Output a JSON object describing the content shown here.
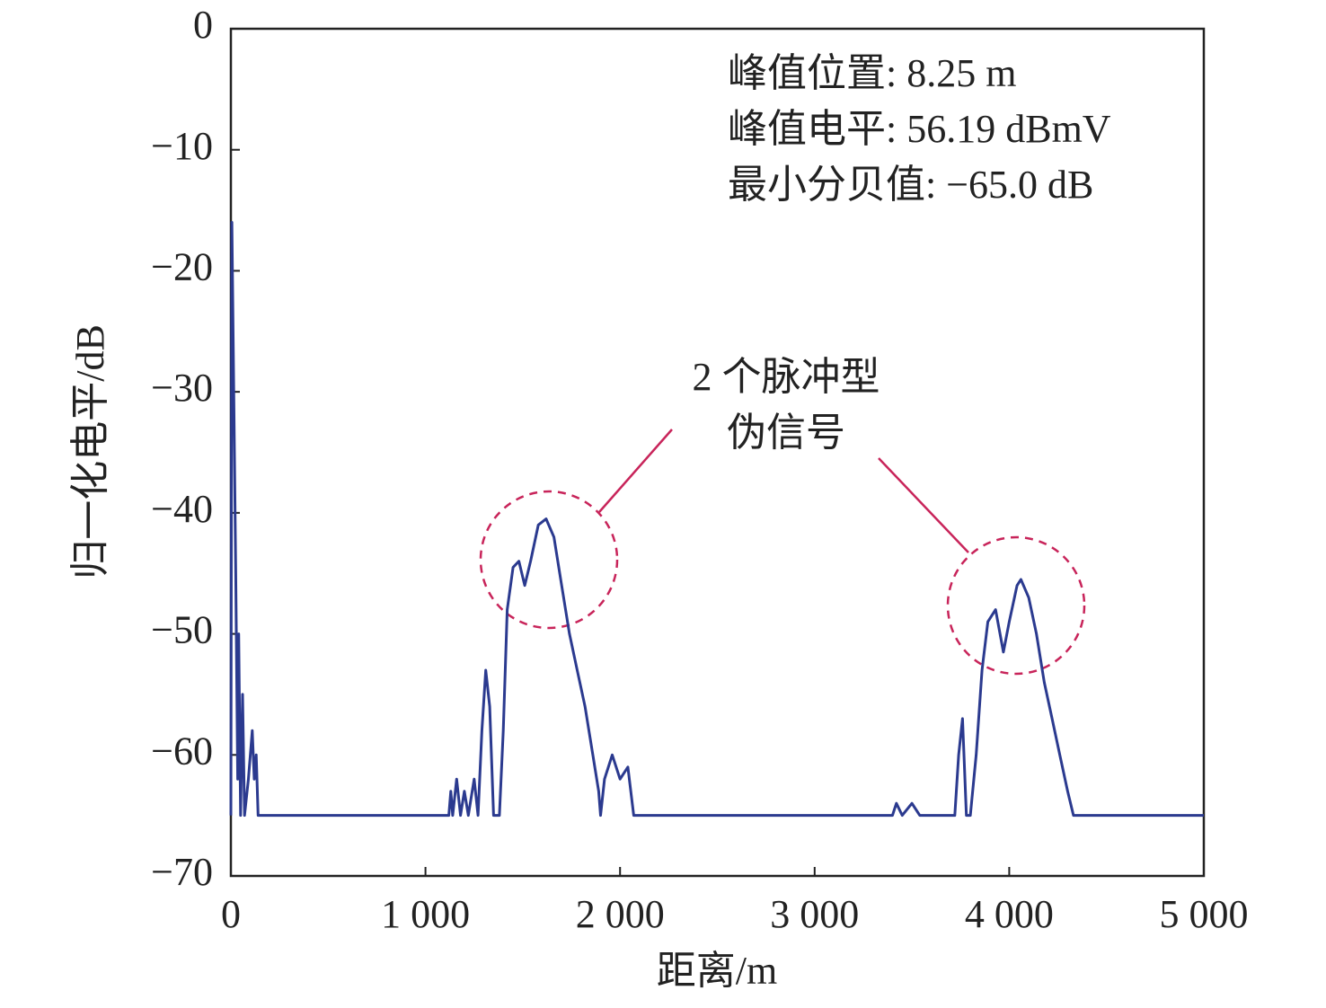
{
  "chart_data": {
    "type": "line",
    "x_label": "距离/m",
    "y_label": "归一化电平/dB",
    "annotations": [
      "峰值位置: 8.25 m",
      "峰值电平: 56.19 dBmV",
      "最小分贝值: −65.0 dB"
    ],
    "callout": [
      "2 个脉冲型",
      "伪信号"
    ],
    "xlim": [
      0,
      5000
    ],
    "ylim": [
      -70,
      0
    ],
    "xticks": [
      0,
      {
        "value": 1000,
        "label": "1 000"
      },
      {
        "value": 2000,
        "label": "2 000"
      },
      {
        "value": 3000,
        "label": "3 000"
      },
      {
        "value": 4000,
        "label": "4 000"
      },
      {
        "value": 5000,
        "label": "5 000"
      }
    ],
    "yticks": [
      0,
      {
        "value": -10,
        "label": "−10"
      },
      {
        "value": -20,
        "label": "−20"
      },
      {
        "value": -30,
        "label": "−30"
      },
      {
        "value": -40,
        "label": "−40"
      },
      {
        "value": -50,
        "label": "−50"
      },
      {
        "value": -60,
        "label": "−60"
      },
      {
        "value": -70,
        "label": "−70"
      }
    ],
    "grid": false,
    "x": [
      0,
      5,
      15,
      25,
      35,
      40,
      50,
      60,
      70,
      90,
      110,
      120,
      130,
      140,
      1120,
      1130,
      1140,
      1160,
      1180,
      1200,
      1220,
      1250,
      1270,
      1290,
      1310,
      1330,
      1350,
      1380,
      1400,
      1420,
      1450,
      1480,
      1510,
      1540,
      1580,
      1620,
      1660,
      1700,
      1740,
      1780,
      1820,
      1860,
      1890,
      1900,
      1920,
      1960,
      2000,
      2040,
      2070,
      3400,
      3420,
      3450,
      3500,
      3540,
      3720,
      3740,
      3760,
      3780,
      3800,
      3830,
      3860,
      3890,
      3930,
      3970,
      4000,
      4040,
      4060,
      4100,
      4140,
      4180,
      4220,
      4260,
      4300,
      4330,
      4500,
      5000
    ],
    "series": [
      {
        "color": "#2b3a8f",
        "values": [
          -65,
          -16,
          -30,
          -45,
          -62,
          -50,
          -65,
          -55,
          -65,
          -62,
          -58,
          -62,
          -60,
          -65,
          -65,
          -63,
          -65,
          -62,
          -65,
          -63,
          -65,
          -62,
          -65,
          -58,
          -53,
          -56,
          -65,
          -65,
          -58,
          -48,
          -44.5,
          -44,
          -46,
          -44,
          -41,
          -40.5,
          -42,
          -46,
          -50,
          -53,
          -56,
          -60,
          -63,
          -65,
          -62,
          -60,
          -62,
          -61,
          -65,
          -65,
          -64,
          -65,
          -64,
          -65,
          -65,
          -60,
          -57,
          -65,
          -65,
          -60,
          -53,
          -49,
          -48,
          -51.5,
          -49,
          -46,
          -45.5,
          -47,
          -50,
          -54,
          -57,
          -60,
          -63,
          -65,
          -65,
          -65
        ]
      }
    ]
  }
}
